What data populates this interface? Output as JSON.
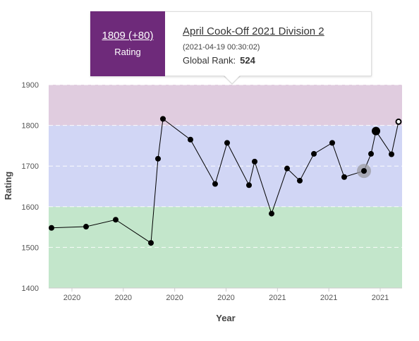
{
  "tooltip": {
    "rating_value": "1809 (+80)",
    "rating_label": "Rating",
    "contest_name": "April Cook-Off 2021 Division 2",
    "contest_date": "(2021-04-19 00:30:02)",
    "rank_label": "Global Rank:",
    "rank_value": "524",
    "accent_color": "#6e2a7a"
  },
  "chart_data": {
    "type": "line",
    "title": "",
    "xlabel": "Year",
    "ylabel": "Rating",
    "ylim": [
      1400,
      1900
    ],
    "yticks": [
      1400,
      1500,
      1600,
      1700,
      1800,
      1900
    ],
    "xticks": [
      "2020",
      "2020",
      "2020",
      "2020",
      "2021",
      "2021",
      "2021"
    ],
    "grid": true,
    "bands": [
      {
        "from": 1400,
        "to": 1600,
        "color": "#c3e6cb"
      },
      {
        "from": 1600,
        "to": 1800,
        "color": "#d1d6f5"
      },
      {
        "from": 1800,
        "to": 1900,
        "color": "#e0ccdf"
      }
    ],
    "series": [
      {
        "values": [
          1548,
          1551,
          1568,
          1511,
          1718,
          1816,
          1765,
          1656,
          1757,
          1653,
          1711,
          1583,
          1694,
          1664,
          1730,
          1757,
          1673,
          1688,
          1730,
          1786,
          1729,
          1809
        ],
        "highlight_index": 17,
        "large_point_index": 19,
        "open_point_index": 21
      }
    ]
  }
}
